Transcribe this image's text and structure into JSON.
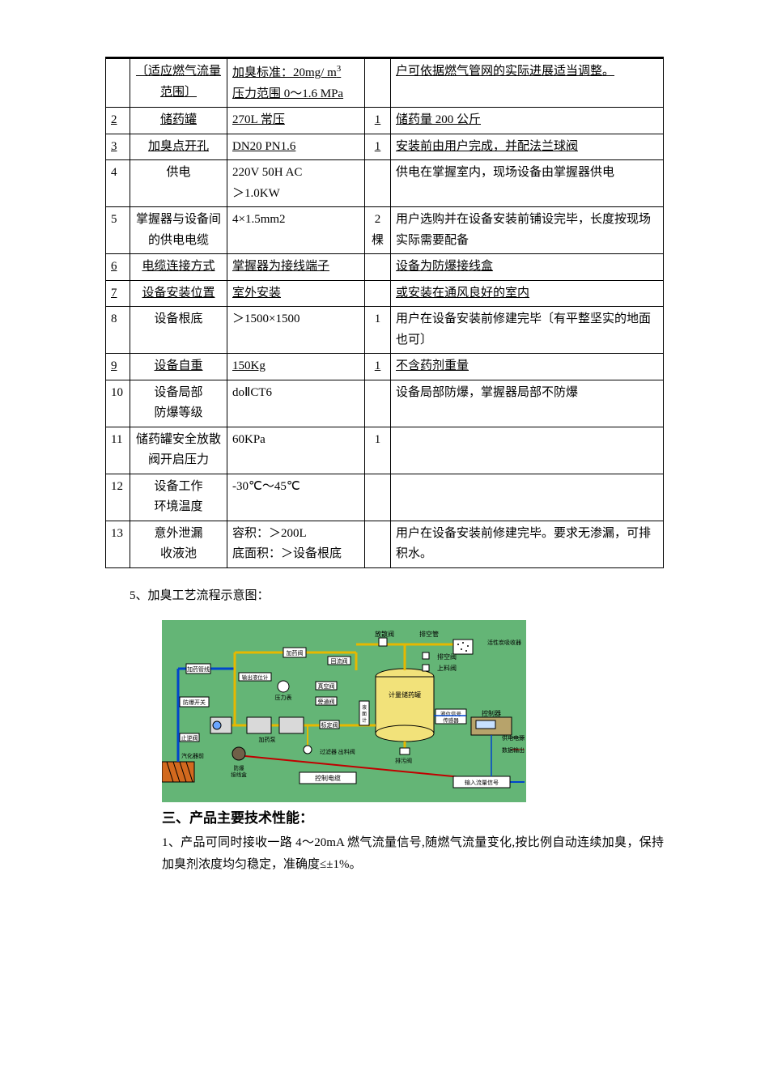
{
  "table": {
    "rows": [
      {
        "idx": "",
        "name": "〔适应燃气流量范围〕",
        "spec_html": "加臭标准：20mg/ m<span class='sup'>3</span><br>压力范围 0～1.6 MPa",
        "qty": "",
        "note": "户可依据燃气管网的实际进展适当调整。",
        "underline_cols": [
          1,
          2,
          4
        ]
      },
      {
        "idx": "2",
        "name": "储药罐",
        "spec": "270L 常压",
        "qty": "1",
        "note": "储药量 200 公斤",
        "underline_cols": [
          0,
          1,
          2,
          3,
          4
        ]
      },
      {
        "idx": "3",
        "name": "加臭点开孔",
        "spec": "DN20 PN1.6",
        "qty": "1",
        "note": "安装前由用户完成，并配法兰球阀",
        "underline_cols": [
          0,
          1,
          2,
          3,
          4
        ]
      },
      {
        "idx": "4",
        "name": "供电",
        "spec": "220V 50H AC\n＞1.0KW",
        "qty": "",
        "note": "供电在掌握室内，现场设备由掌握器供电",
        "underline_cols": []
      },
      {
        "idx": "5",
        "name": "掌握器与设备间的供电电缆",
        "spec": "4×1.5mm2",
        "qty": "2\n棵",
        "note": "用户选购并在设备安装前铺设完毕，长度按现场实际需要配备",
        "underline_cols": []
      },
      {
        "idx": "6",
        "name": "电缆连接方式",
        "spec": "掌握器为接线端子",
        "qty": "",
        "note": "设备为防爆接线盒",
        "underline_cols": [
          0,
          1,
          2,
          4
        ]
      },
      {
        "idx": "7",
        "name": "设备安装位置",
        "spec": "室外安装",
        "qty": "",
        "note": "或安装在通风良好的室内",
        "underline_cols": [
          0,
          1,
          2,
          4
        ]
      },
      {
        "idx": "8",
        "name": "设备根底",
        "spec": "＞1500×1500",
        "qty": "1",
        "note": "用户在设备安装前修建完毕〔有平整坚实的地面也可〕",
        "underline_cols": []
      },
      {
        "idx": "9",
        "name": "设备自重",
        "spec": "150Kg",
        "qty": "1",
        "note": "不含药剂重量",
        "underline_cols": [
          0,
          1,
          2,
          3,
          4
        ]
      },
      {
        "idx": "10",
        "name": "设备局部\n防爆等级",
        "spec": "doⅡCT6",
        "qty": "",
        "note": "设备局部防爆，掌握器局部不防爆",
        "underline_cols": []
      },
      {
        "idx": "11",
        "name": "储药罐安全放散阀开启压力",
        "spec": "60KPa",
        "qty": "1",
        "note": "",
        "underline_cols": []
      },
      {
        "idx": "12",
        "name": "设备工作\n环境温度",
        "spec": "-30℃～45℃",
        "qty": "",
        "note": "",
        "underline_cols": []
      },
      {
        "idx": "13",
        "name": "意外泄漏\n收液池",
        "spec": "容积：＞200L\n底面积：＞设备根底",
        "qty": "",
        "note": "用户在设备安装前修建完毕。要求无渗漏，可排积水。",
        "underline_cols": []
      }
    ]
  },
  "section5_title": "5、加臭工艺流程示意图：",
  "heading3": "三、产品主要技术性能：",
  "para1": "1、产品可同时接收一路 4～20mA 燃气流量信号,随燃气流量变化,按比例自动连续加臭，保持加臭剂浓度均匀稳定，准确度≤±1%。",
  "diagram": {
    "type": "flowchart",
    "background_color": "#64b576",
    "tank_color": "#f2e27a",
    "box_fill": "#ffffff",
    "box_stroke": "#000000",
    "pipe_color": "#e6b800",
    "control_line_color": "#c00000",
    "signal_line_color": "#0044cc",
    "text_color": "#000000",
    "label_fontsize": 8,
    "labels": {
      "top1": "放散阀",
      "top2": "排空管",
      "top3": "活性炭吸收器",
      "top4": "排空阀",
      "top5": "上料阀",
      "l1": "加药管线",
      "l2": "防爆开关",
      "l3": "止逆阀",
      "l4": "汽化器前",
      "m1": "加药阀",
      "m2": "回流阀",
      "m3": "输出液位计",
      "m4": "压力表",
      "m5": "真空阀",
      "m6": "旁通阀",
      "m7": "液面计",
      "m8": "加药泵",
      "m9": "标定阀",
      "m10": "过滤器 出料阀",
      "m11": "排污阀",
      "m12": "防爆接线盒",
      "m13": "控制电缆",
      "tank": "计量储药罐",
      "sensor": "液位信号传感器",
      "r1": "控制器",
      "r2": "供电电源",
      "r3": "数据输出",
      "r4": "输入流量信号"
    }
  }
}
